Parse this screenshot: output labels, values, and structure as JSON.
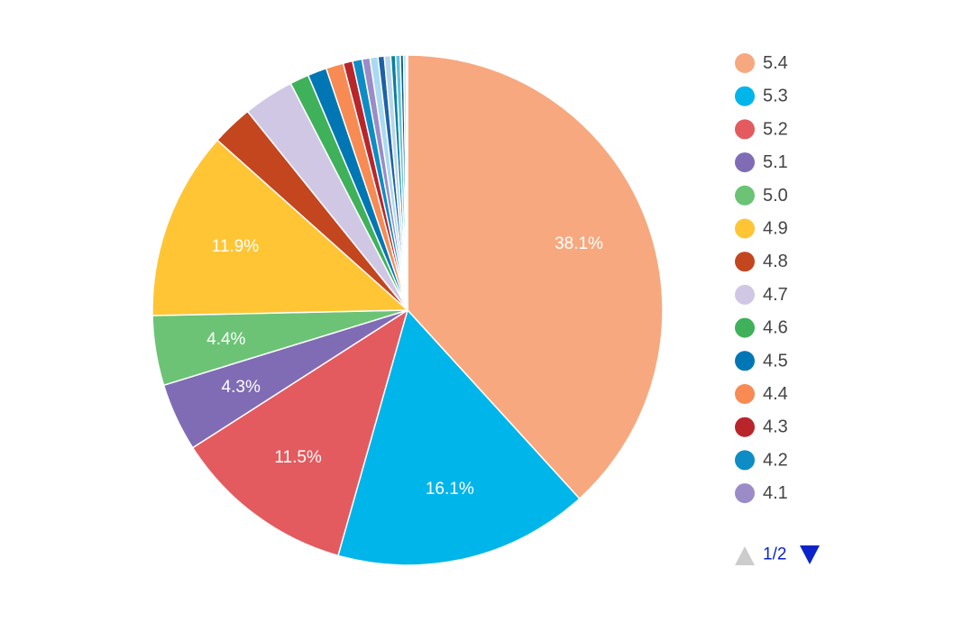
{
  "chart_data": {
    "type": "pie",
    "title": "",
    "slices": [
      {
        "label": "5.4",
        "value": 38.1,
        "color": "#F8A87E",
        "data_label": "38.1%"
      },
      {
        "label": "5.3",
        "value": 16.1,
        "color": "#00B5E9",
        "data_label": "16.1%"
      },
      {
        "label": "5.2",
        "value": 11.5,
        "color": "#E35B5E",
        "data_label": "11.5%"
      },
      {
        "label": "5.1",
        "value": 4.3,
        "color": "#806CB5",
        "data_label": "4.3%"
      },
      {
        "label": "5.0",
        "value": 4.4,
        "color": "#6CC375",
        "data_label": "4.4%"
      },
      {
        "label": "4.9",
        "value": 11.9,
        "color": "#FFC534",
        "data_label": "11.9%"
      },
      {
        "label": "4.8",
        "value": 2.6,
        "color": "#C3461F",
        "data_label": ""
      },
      {
        "label": "4.7",
        "value": 3.2,
        "color": "#D0C7E5",
        "data_label": ""
      },
      {
        "label": "4.6",
        "value": 1.2,
        "color": "#3FB15A",
        "data_label": ""
      },
      {
        "label": "4.5",
        "value": 1.2,
        "color": "#0077B4",
        "data_label": ""
      },
      {
        "label": "4.4",
        "value": 1.1,
        "color": "#F78B53",
        "data_label": ""
      },
      {
        "label": "4.3",
        "value": 0.6,
        "color": "#B8262C",
        "data_label": ""
      },
      {
        "label": "4.2",
        "value": 0.6,
        "color": "#0E8CC5",
        "data_label": ""
      },
      {
        "label": "4.1",
        "value": 0.5,
        "color": "#9B8CC8",
        "data_label": ""
      },
      {
        "label": "",
        "value": 0.5,
        "color": "#A9DAF1",
        "data_label": ""
      },
      {
        "label": "",
        "value": 0.4,
        "color": "#1E62A6",
        "data_label": ""
      },
      {
        "label": "",
        "value": 0.4,
        "color": "#B8D5EC",
        "data_label": ""
      },
      {
        "label": "",
        "value": 0.3,
        "color": "#0A7F9E",
        "data_label": ""
      },
      {
        "label": "",
        "value": 0.3,
        "color": "#64C3DD",
        "data_label": ""
      },
      {
        "label": "",
        "value": 0.2,
        "color": "#0D5A8B",
        "data_label": ""
      },
      {
        "label": "",
        "value": 0.15,
        "color": "#8FCFE6",
        "data_label": ""
      },
      {
        "label": "",
        "value": 0.1,
        "color": "#C7E6F4",
        "data_label": ""
      }
    ],
    "legend": {
      "position": "right",
      "visible_entries": [
        "5.4",
        "5.3",
        "5.2",
        "5.1",
        "5.0",
        "4.9",
        "4.8",
        "4.7",
        "4.6",
        "4.5",
        "4.4",
        "4.3",
        "4.2",
        "4.1"
      ]
    }
  },
  "pager": {
    "text": "1/2",
    "prev_icon": "triangle-up-icon",
    "next_icon": "triangle-down-icon",
    "prev_color": "#CCCCCC",
    "next_color": "#0B24C9"
  }
}
